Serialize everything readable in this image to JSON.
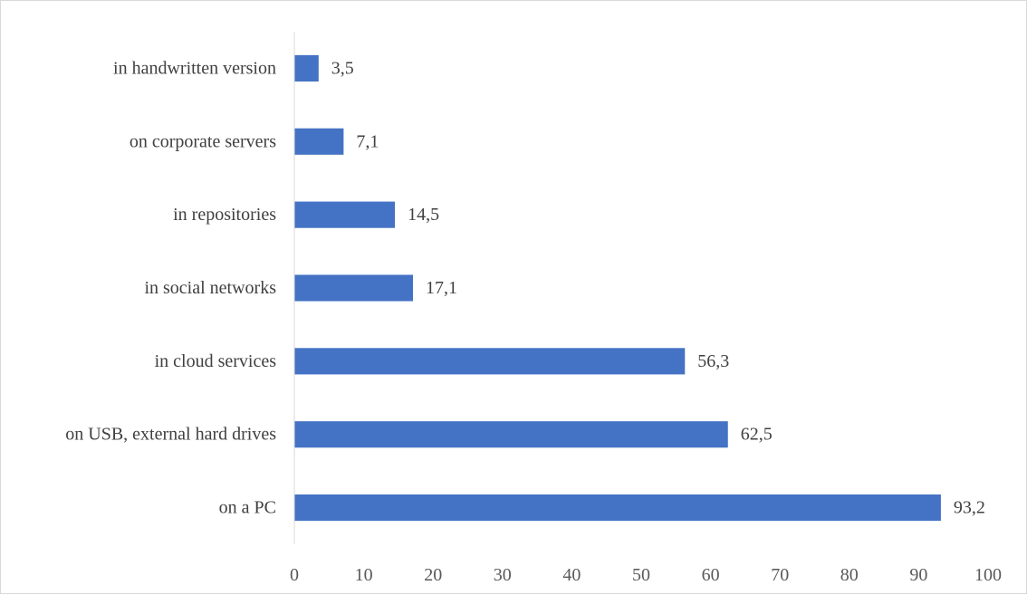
{
  "chart_data": {
    "type": "bar",
    "orientation": "horizontal",
    "categories": [
      "on a PC",
      "on USB, external hard drives",
      "in cloud services",
      "in social networks",
      "in repositories",
      "on corporate servers",
      "in handwritten version"
    ],
    "values": [
      93.2,
      62.5,
      56.3,
      17.1,
      14.5,
      7.1,
      3.5
    ],
    "value_labels": [
      "93,2",
      "62,5",
      "56,3",
      "17,1",
      "14,5",
      "7,1",
      "3,5"
    ],
    "xlim": [
      0,
      100
    ],
    "xticks": [
      0,
      10,
      20,
      30,
      40,
      50,
      60,
      70,
      80,
      90,
      100
    ],
    "title": "",
    "xlabel": "",
    "ylabel": "",
    "grid": false,
    "bar_color": "#4472c4"
  }
}
